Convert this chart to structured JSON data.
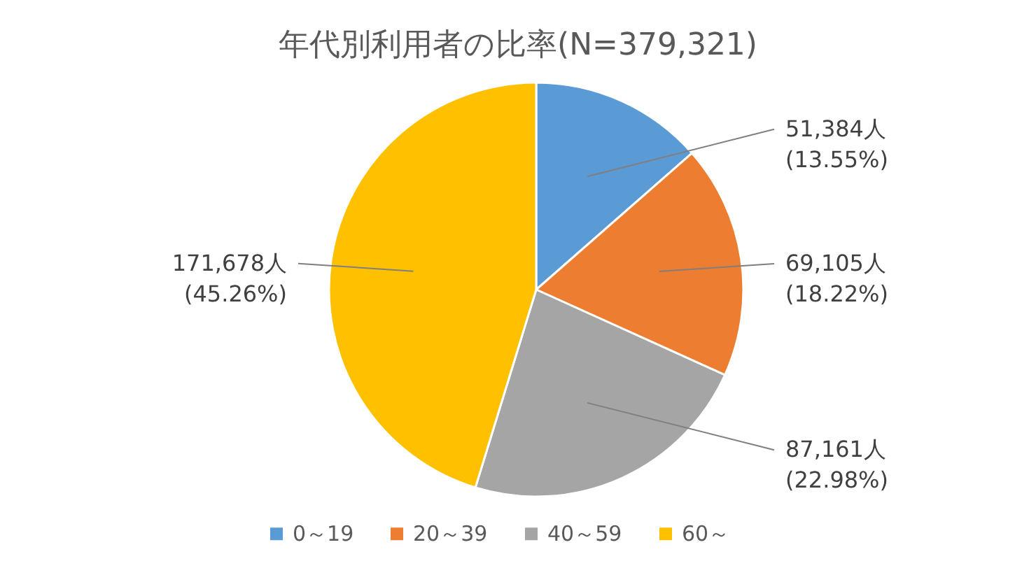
{
  "chart_data": {
    "type": "pie",
    "title": "年代別利用者の比率(N=379,321)",
    "categories": [
      "0～19",
      "20～39",
      "40～59",
      "60～"
    ],
    "values": [
      51384,
      69105,
      87161,
      171678
    ],
    "colors": [
      "#5b9bd5",
      "#ed7d31",
      "#a5a5a5",
      "#ffc000"
    ],
    "value_labels": [
      "51,384人\n(13.55%)",
      "69,105人\n(18.22%)",
      "87,161人\n(22.98%)",
      "171,678人\n(45.26%)"
    ],
    "legend": "bottom"
  }
}
